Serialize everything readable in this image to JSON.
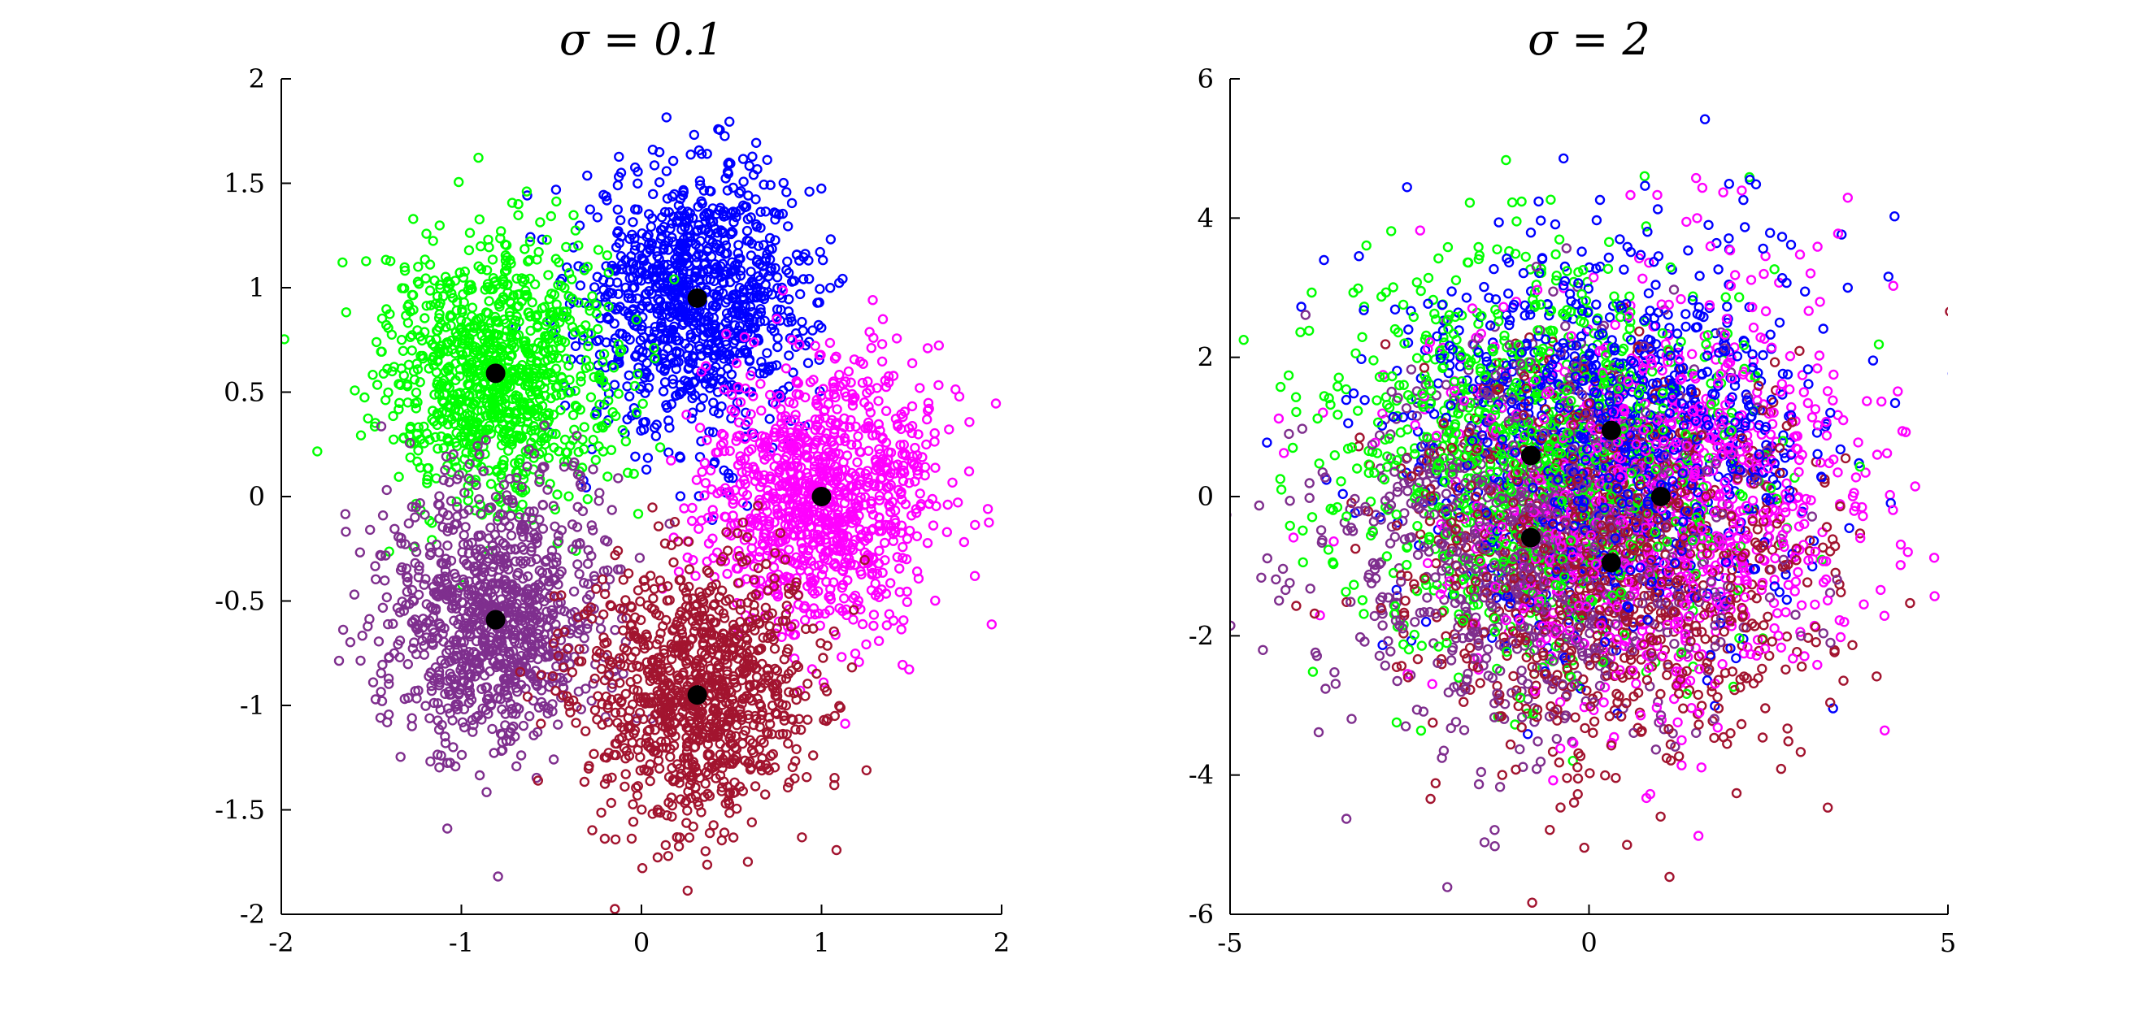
{
  "chart_data": [
    {
      "type": "scatter",
      "title": "σ = 0.1",
      "xlim": [
        -2,
        2
      ],
      "ylim": [
        -2,
        2
      ],
      "xticks": [
        -2,
        -1,
        0,
        1,
        2
      ],
      "xtick_labels": [
        "-2",
        "-1",
        "0",
        "1",
        "2"
      ],
      "yticks": [
        2,
        1.5,
        1,
        0.5,
        0,
        -0.5,
        -1,
        -1.5,
        -2
      ],
      "ytick_labels": [
        "2",
        "1.5",
        "1",
        "0.5",
        "0",
        "-0.5",
        "-1",
        "-1.5",
        "-2"
      ],
      "grid": false,
      "sigma": 0.1,
      "marker": "open circle",
      "points_per_cluster": 1000,
      "clusters": [
        {
          "color": "#0000ff",
          "center": [
            0.31,
            0.95
          ]
        },
        {
          "color": "#00ff00",
          "center": [
            -0.81,
            0.59
          ]
        },
        {
          "color": "#ff00ff",
          "center": [
            1.0,
            0.0
          ]
        },
        {
          "color": "#7f2f8e",
          "center": [
            -0.81,
            -0.59
          ]
        },
        {
          "color": "#a2142f",
          "center": [
            0.31,
            -0.95
          ]
        }
      ],
      "centers_marker": {
        "color": "#000000",
        "style": "filled circle"
      }
    },
    {
      "type": "scatter",
      "title": "σ = 2",
      "xlim": [
        -5,
        5
      ],
      "ylim": [
        -6,
        6
      ],
      "xticks": [
        -5,
        0,
        5
      ],
      "xtick_labels": [
        "-5",
        "0",
        "5"
      ],
      "yticks": [
        6,
        4,
        2,
        0,
        -2,
        -4,
        -6
      ],
      "ytick_labels": [
        "6",
        "4",
        "2",
        "0",
        "-2",
        "-4",
        "-6"
      ],
      "grid": false,
      "sigma": 2,
      "marker": "open circle",
      "points_per_cluster": 1000,
      "clusters": [
        {
          "color": "#0000ff",
          "center": [
            0.31,
            0.95
          ]
        },
        {
          "color": "#00ff00",
          "center": [
            -0.81,
            0.59
          ]
        },
        {
          "color": "#ff00ff",
          "center": [
            1.0,
            0.0
          ]
        },
        {
          "color": "#7f2f8e",
          "center": [
            -0.81,
            -0.59
          ]
        },
        {
          "color": "#a2142f",
          "center": [
            0.31,
            -0.95
          ]
        }
      ],
      "centers_marker": {
        "color": "#000000",
        "style": "filled circle"
      }
    }
  ]
}
